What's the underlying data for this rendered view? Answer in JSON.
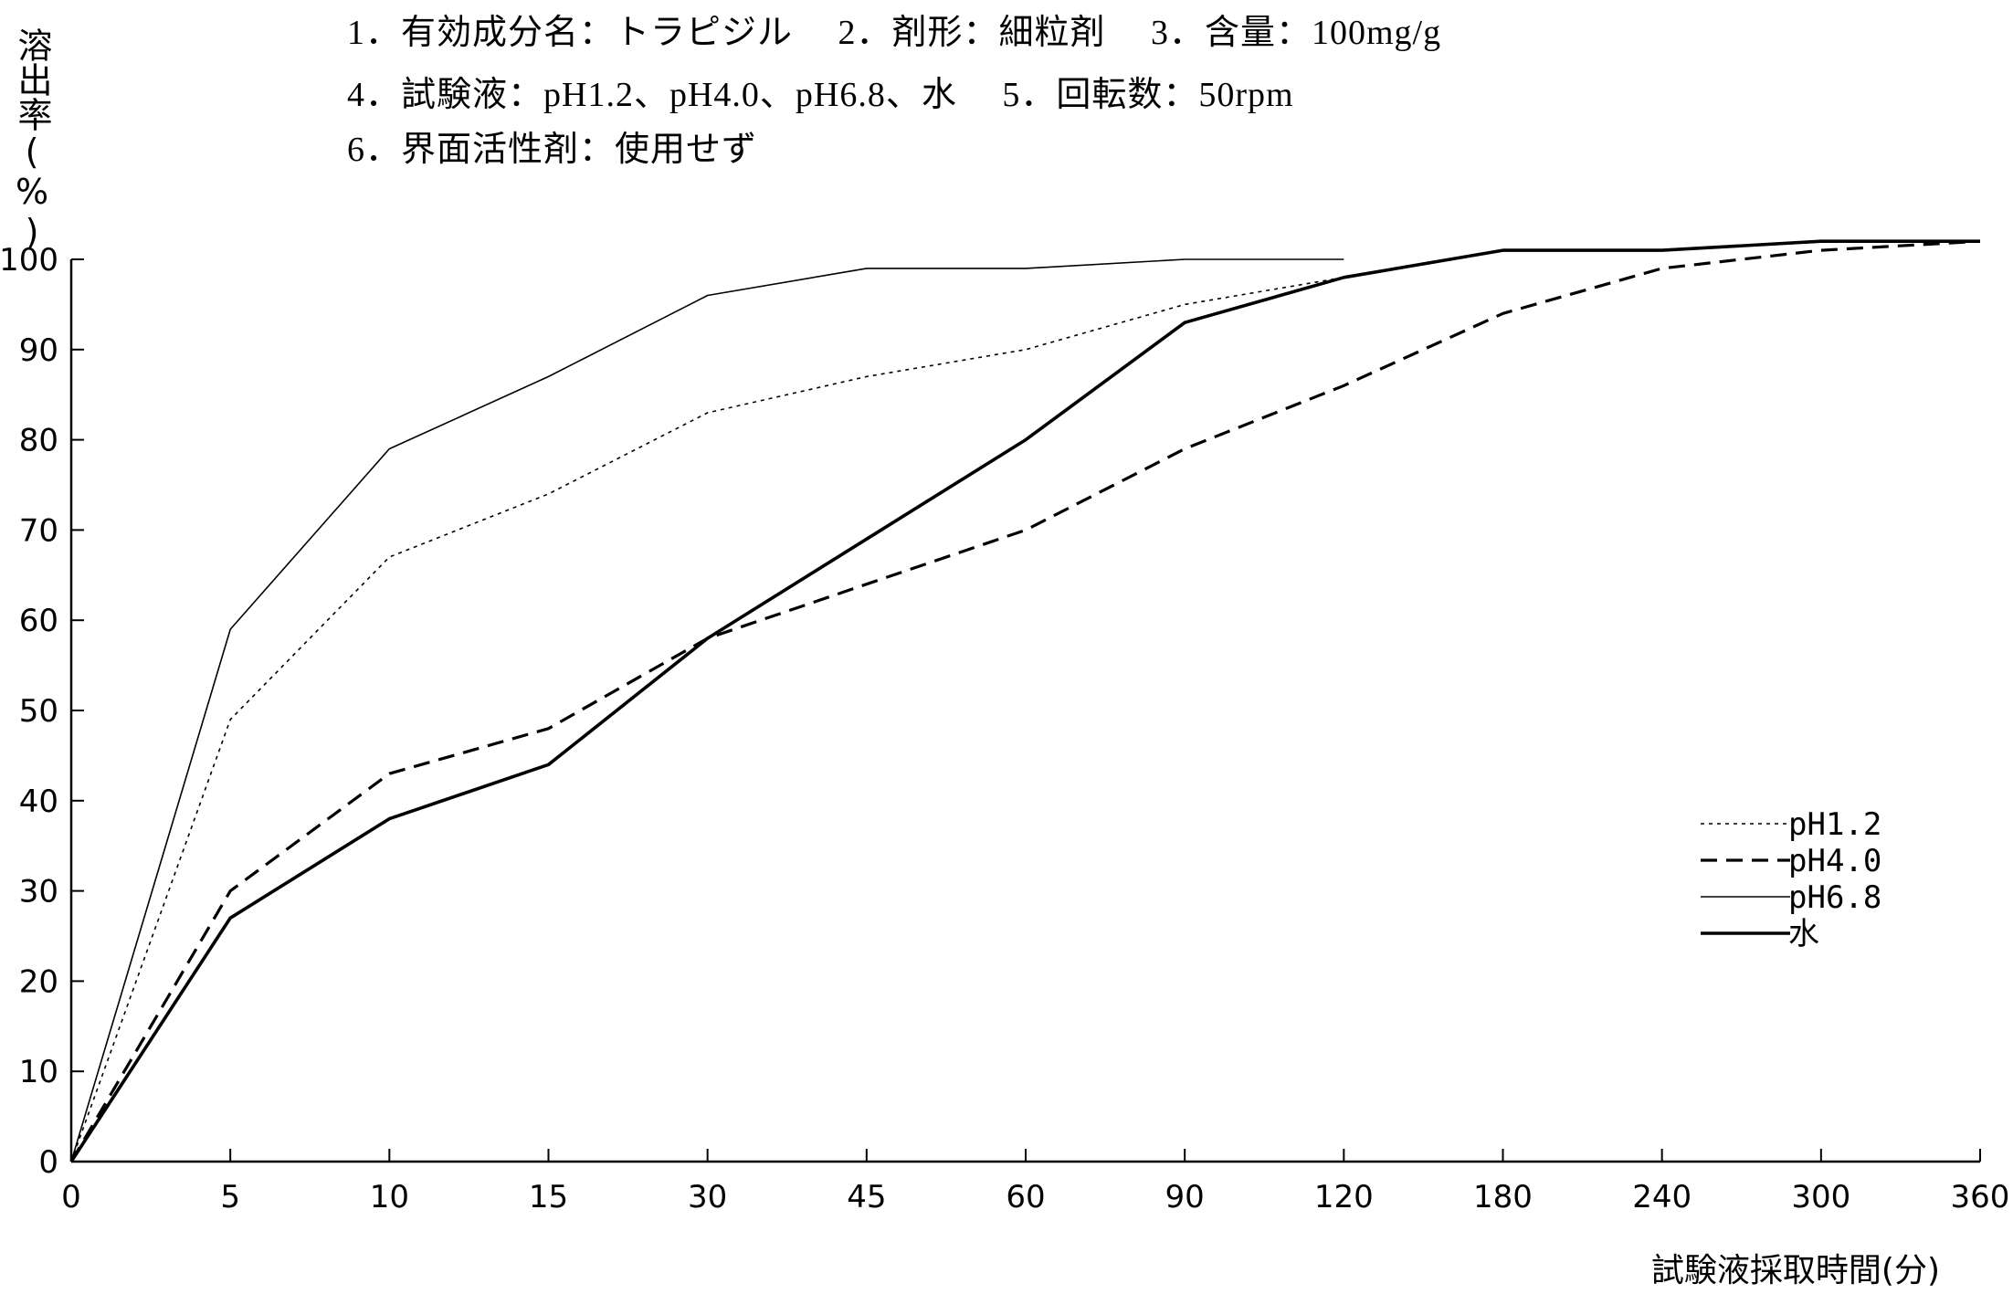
{
  "header": {
    "line1": "1．有効成分名：トラピジル　 2．剤形：細粒剤　 3．含量：100mg/g",
    "line2": "4．試験液：pH1.2、pH4.0、pH6.8、水　 5．回転数：50rpm",
    "line3": "6．界面活性剤：使用せず"
  },
  "chart_data": {
    "type": "line",
    "title": "",
    "xlabel": "試験液採取時間(分)",
    "ylabel": "溶出率(%)",
    "x": [
      "0",
      "5",
      "10",
      "15",
      "30",
      "45",
      "60",
      "90",
      "120",
      "180",
      "240",
      "300",
      "360"
    ],
    "ylim": [
      0,
      100
    ],
    "yticks": [
      0,
      10,
      20,
      30,
      40,
      50,
      60,
      70,
      80,
      90,
      100
    ],
    "grid": false,
    "legend": "right",
    "series": [
      {
        "name": "pH1.2",
        "style": "dotted",
        "color": "#000000",
        "x": [
          "0",
          "5",
          "10",
          "15",
          "30",
          "45",
          "60",
          "90",
          "120"
        ],
        "values": [
          0,
          49,
          67,
          74,
          83,
          87,
          90,
          95,
          98
        ]
      },
      {
        "name": "pH4.0",
        "style": "dashed",
        "color": "#000000",
        "x": [
          "0",
          "5",
          "10",
          "15",
          "30",
          "45",
          "60",
          "90",
          "120",
          "180",
          "240",
          "300",
          "360"
        ],
        "values": [
          0,
          30,
          43,
          48,
          58,
          64,
          70,
          79,
          86,
          94,
          99,
          101,
          102
        ]
      },
      {
        "name": "pH6.8",
        "style": "thin",
        "color": "#000000",
        "x": [
          "0",
          "5",
          "10",
          "15",
          "30",
          "45",
          "60",
          "90",
          "120"
        ],
        "values": [
          0,
          59,
          79,
          87,
          96,
          99,
          99,
          100,
          100
        ]
      },
      {
        "name": "水",
        "style": "thick",
        "color": "#000000",
        "x": [
          "0",
          "5",
          "10",
          "15",
          "30",
          "45",
          "60",
          "90",
          "120",
          "180",
          "240",
          "300",
          "360"
        ],
        "values": [
          0,
          27,
          38,
          44,
          58,
          69,
          80,
          93,
          98,
          101,
          101,
          102,
          102
        ]
      }
    ]
  }
}
